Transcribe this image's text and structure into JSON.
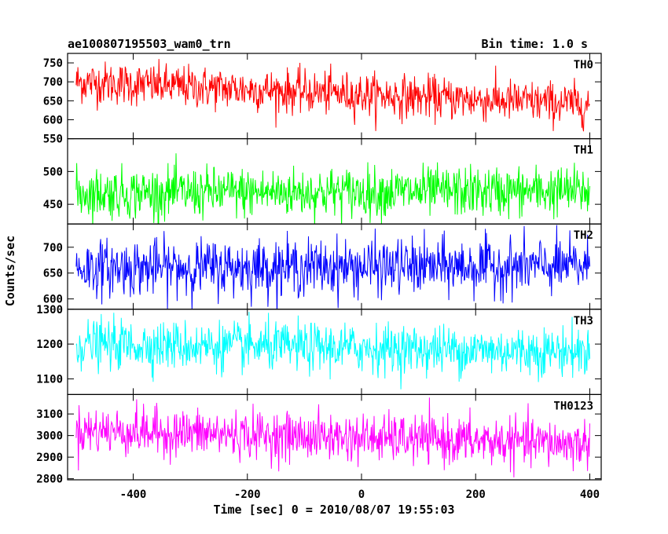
{
  "header": {
    "title": "ae100807195503_wam0_trn",
    "bin_time": "Bin time: 1.0 s"
  },
  "chart_data": {
    "type": "line",
    "xlabel": "Time [sec] 0 = 2010/08/07 19:55:03",
    "ylabel": "Counts/sec",
    "xlim": [
      -515,
      420
    ],
    "x_ticks": [
      -400,
      -200,
      0,
      200,
      400
    ],
    "x_range": [
      -500,
      400
    ],
    "bin_time_s": 1.0,
    "panels": [
      {
        "name": "TH0",
        "color": "#ff0000",
        "ylim": [
          550,
          775
        ],
        "y_ticks": [
          550,
          600,
          650,
          700,
          750
        ],
        "mean_start": 700,
        "mean_end": 640,
        "noise_sd": 28
      },
      {
        "name": "TH1",
        "color": "#00ff00",
        "ylim": [
          420,
          550
        ],
        "y_ticks": [
          450,
          500
        ],
        "mean_start": 467,
        "mean_end": 470,
        "noise_sd": 19
      },
      {
        "name": "TH2",
        "color": "#0000ff",
        "ylim": [
          580,
          745
        ],
        "y_ticks": [
          600,
          650,
          700
        ],
        "mean_start": 660,
        "mean_end": 663,
        "noise_sd": 27
      },
      {
        "name": "TH3",
        "color": "#00ffff",
        "ylim": [
          1055,
          1300
        ],
        "y_ticks": [
          1100,
          1200,
          1300
        ],
        "mean_start": 1200,
        "mean_end": 1178,
        "noise_sd": 35
      },
      {
        "name": "TH0123",
        "color": "#ff00ff",
        "ylim": [
          2795,
          3190
        ],
        "y_ticks": [
          2800,
          2900,
          3000,
          3100
        ],
        "mean_start": 3025,
        "mean_end": 2960,
        "noise_sd": 55
      }
    ]
  }
}
